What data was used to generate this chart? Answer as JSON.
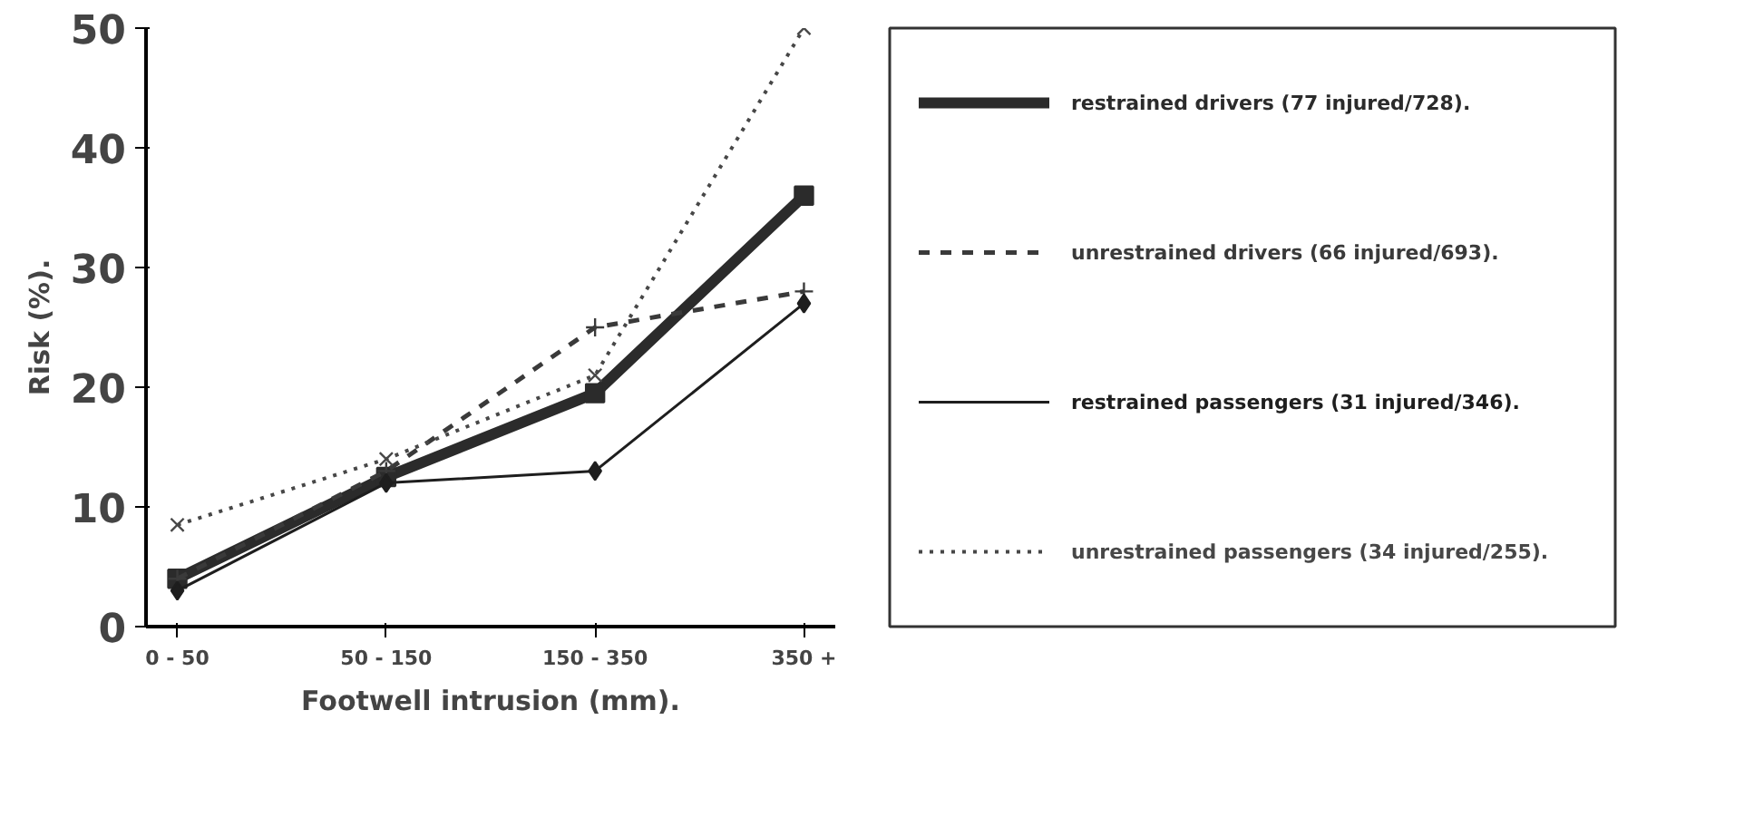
{
  "chart_data": {
    "type": "line",
    "xlabel": "Footwell intrusion (mm).",
    "ylabel": "Risk (%).",
    "categories": [
      "0 - 50",
      "50 - 150",
      "150 - 350",
      "350 +"
    ],
    "ylim": [
      0,
      50
    ],
    "yticks": [
      0,
      10,
      20,
      30,
      40,
      50
    ],
    "grid": false,
    "legend": "right",
    "series": [
      {
        "name": "restrained drivers (77 injured/728).",
        "color": "#2b2b2b",
        "values": [
          4,
          12.5,
          19.5,
          36
        ],
        "marker": "square",
        "line_style": "solid"
      },
      {
        "name": "unrestrained drivers (66 injured/693).",
        "color": "#3a3a3a",
        "values": [
          4,
          13,
          25,
          28
        ],
        "marker": "cross",
        "line_style": "dashed"
      },
      {
        "name": "restrained passengers (31 injured/346).",
        "color": "#1e1e1e",
        "values": [
          3,
          12,
          13,
          27
        ],
        "marker": "diamond",
        "line_style": "solid"
      },
      {
        "name": "unrestrained passengers (34 injured/255).",
        "color": "#474747",
        "values": [
          8.5,
          14,
          21,
          50
        ],
        "marker": "x",
        "line_style": "dotted"
      }
    ]
  }
}
